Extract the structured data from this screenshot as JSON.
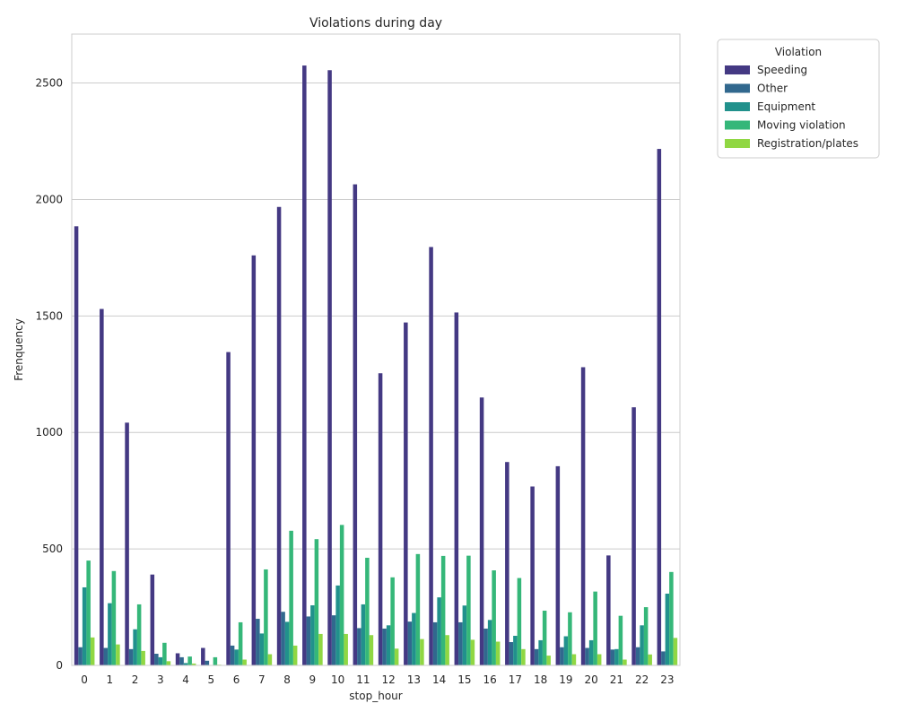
{
  "chart_data": {
    "type": "bar",
    "title": "Violations during day",
    "xlabel": "stop_hour",
    "ylabel": "Frenquency",
    "ylim": [
      0,
      2710
    ],
    "yticks": [
      0,
      500,
      1000,
      1500,
      2000,
      2500
    ],
    "grid": "y",
    "legend": {
      "title": "Violation",
      "placement": "outside top-right"
    },
    "categories": [
      "0",
      "1",
      "2",
      "3",
      "4",
      "5",
      "6",
      "7",
      "8",
      "9",
      "10",
      "11",
      "12",
      "13",
      "14",
      "15",
      "16",
      "17",
      "18",
      "19",
      "20",
      "21",
      "22",
      "23"
    ],
    "series": [
      {
        "name": "Speeding",
        "color": "#443983",
        "values": [
          1885,
          1530,
          1042,
          390,
          52,
          75,
          1345,
          1760,
          1968,
          2575,
          2555,
          2065,
          1254,
          1472,
          1796,
          1515,
          1150,
          873,
          768,
          855,
          1280,
          472,
          1108,
          2217
        ]
      },
      {
        "name": "Other",
        "color": "#31688e",
        "values": [
          78,
          75,
          70,
          50,
          35,
          20,
          85,
          200,
          230,
          210,
          215,
          160,
          158,
          188,
          185,
          185,
          158,
          100,
          70,
          78,
          75,
          68,
          78,
          60
        ]
      },
      {
        "name": "Equipment",
        "color": "#21918c",
        "values": [
          335,
          267,
          155,
          35,
          10,
          0,
          68,
          137,
          187,
          258,
          343,
          262,
          172,
          225,
          292,
          257,
          195,
          127,
          108,
          125,
          108,
          70,
          172,
          308
        ]
      },
      {
        "name": "Moving violation",
        "color": "#35b779",
        "values": [
          450,
          405,
          262,
          97,
          38,
          35,
          185,
          412,
          578,
          542,
          603,
          462,
          378,
          478,
          470,
          471,
          408,
          375,
          235,
          228,
          317,
          213,
          250,
          401
        ]
      },
      {
        "name": "Registration/plates",
        "color": "#90d743",
        "values": [
          120,
          90,
          62,
          18,
          8,
          3,
          25,
          48,
          85,
          135,
          135,
          130,
          72,
          113,
          130,
          110,
          102,
          70,
          42,
          48,
          48,
          25,
          47,
          118
        ]
      }
    ]
  }
}
